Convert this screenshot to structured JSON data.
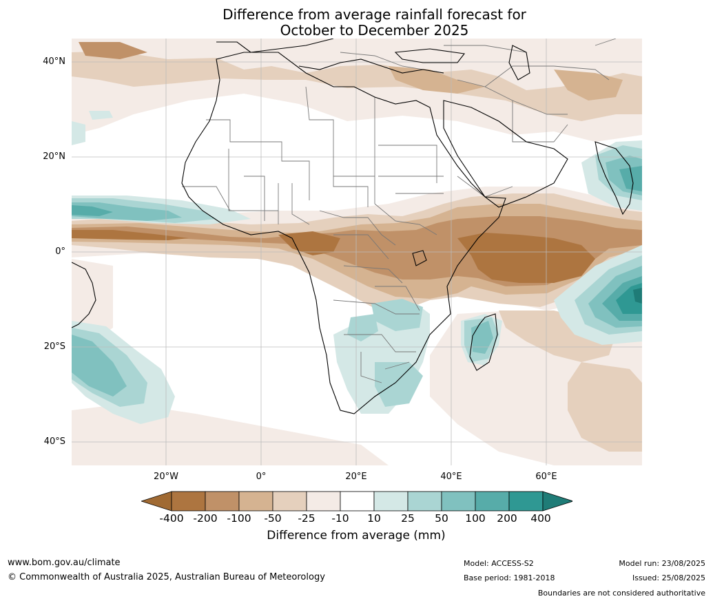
{
  "title": {
    "line1": "Difference from average rainfall forecast for",
    "line2": "October to December 2025"
  },
  "axes": {
    "lat_labels": [
      "40°N",
      "20°N",
      "0°",
      "20°S",
      "40°S"
    ],
    "lon_labels": [
      "20°W",
      "0°",
      "20°E",
      "40°E",
      "60°E"
    ]
  },
  "legend": {
    "title": "Difference from average (mm)",
    "ticks": [
      "-400",
      "-200",
      "-100",
      "-50",
      "-25",
      "-10",
      "10",
      "25",
      "50",
      "100",
      "200",
      "400"
    ],
    "colors": [
      "#a06a33",
      "#ad7540",
      "#c09168",
      "#d5b391",
      "#e5d0bd",
      "#f4ebe6",
      "#ffffff",
      "#d4e8e6",
      "#aad5d3",
      "#80c1bf",
      "#57aca9",
      "#2f9893",
      "#1f7c77"
    ]
  },
  "footer": {
    "website": "www.bom.gov.au/climate",
    "copyright": "© Commonwealth of Australia 2025, Australian Bureau of Meteorology",
    "model": "Model: ACCESS-S2",
    "base_period": "Base period: 1981-2018",
    "model_run": "Model run: 23/08/2025",
    "issued": "Issued: 25/08/2025",
    "boundaries": "Boundaries are not considered authoritative"
  }
}
